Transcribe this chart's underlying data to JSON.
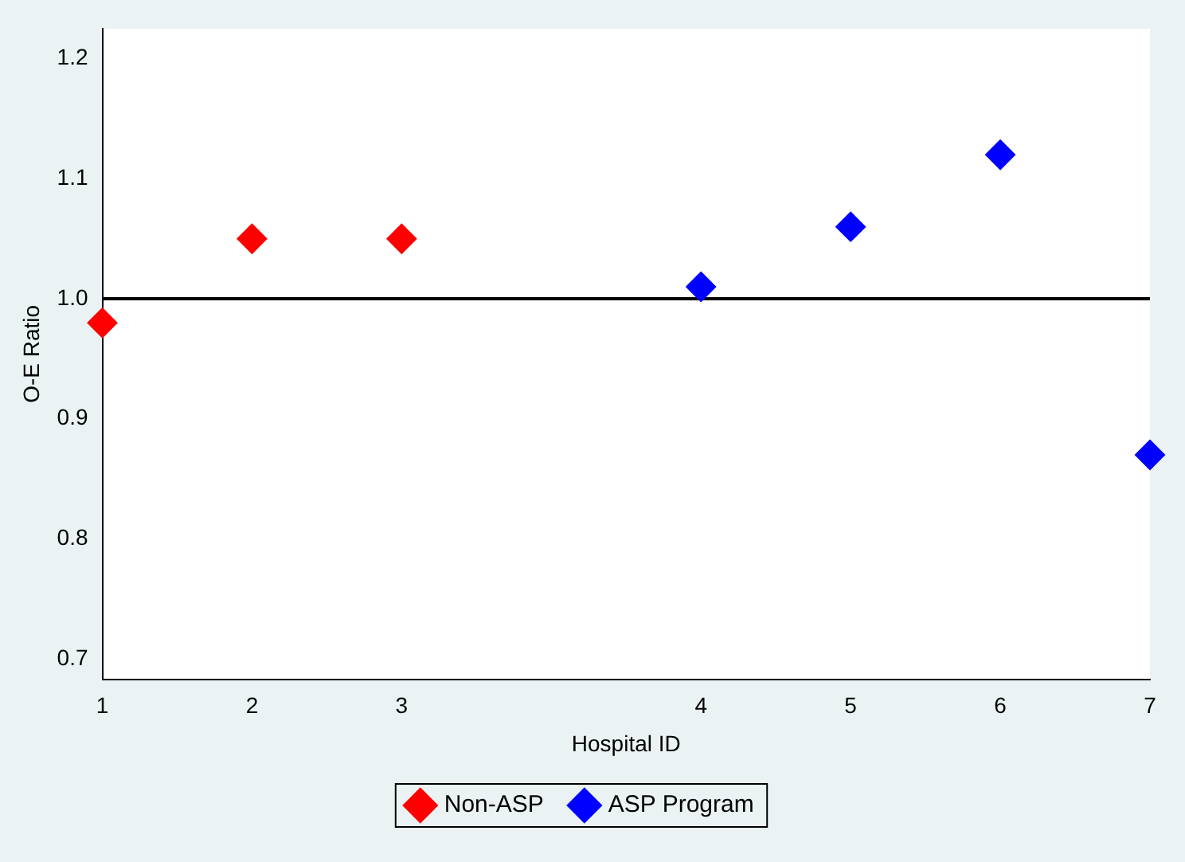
{
  "chart_data": {
    "type": "scatter",
    "xlabel": "Hospital ID",
    "ylabel": "O-E Ratio",
    "categories": [
      "1",
      "2",
      "3",
      null,
      "4",
      "5",
      "6",
      "7"
    ],
    "ylim": [
      0.683,
      1.225
    ],
    "yticks": [
      0.7,
      0.8,
      0.9,
      {
        "value": 1,
        "label": "1.0"
      },
      1.1,
      1.2
    ],
    "series": [
      {
        "name": "Non-ASP",
        "color": "#ff0000",
        "values": [
          0.98,
          1.05,
          1.05,
          null,
          null,
          null,
          null,
          null
        ]
      },
      {
        "name": "ASP Program",
        "color": "#0000ff",
        "values": [
          null,
          null,
          null,
          null,
          1.01,
          1.06,
          1.12,
          0.87
        ]
      }
    ],
    "ref_lines": [
      {
        "axis": "y",
        "value": 1,
        "color": "#000000"
      }
    ],
    "marker": "diamond",
    "grid": false,
    "legend": "bottom"
  }
}
